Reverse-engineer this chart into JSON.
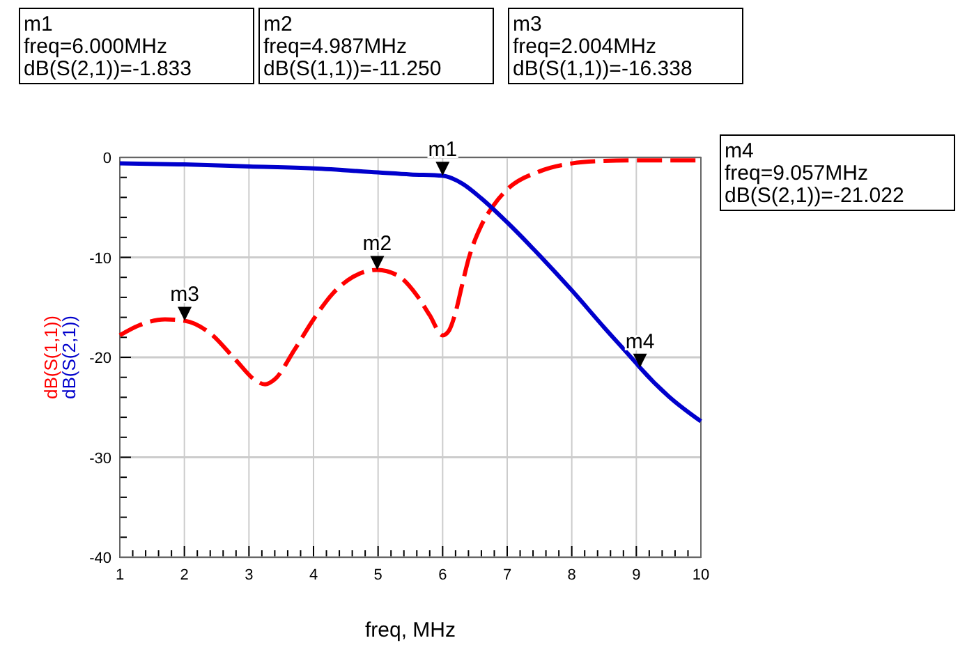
{
  "chart_data": {
    "type": "line",
    "xlabel": "freq, MHz",
    "series": [
      {
        "name": "dB(S(1,1))",
        "color": "#ff0000",
        "line_style": "dashed",
        "x": [
          1,
          1.3,
          1.7,
          2.004,
          2.4,
          2.8,
          3.1,
          3.25,
          3.4,
          3.7,
          4,
          4.3,
          4.6,
          4.987,
          5.3,
          5.6,
          5.8,
          6,
          6.1,
          6.2,
          6.3,
          6.4,
          6.6,
          6.8,
          7,
          7.5,
          8,
          8.5,
          9,
          10
        ],
        "values": [
          -17.8,
          -16.8,
          -16.2,
          -16.338,
          -17.6,
          -20.3,
          -22.3,
          -22.7,
          -22.2,
          -19.3,
          -16.2,
          -13.6,
          -12,
          -11.25,
          -11.8,
          -13.8,
          -15.8,
          -17.8,
          -17.3,
          -15.5,
          -12.8,
          -10.2,
          -6.8,
          -4.7,
          -3.2,
          -1.4,
          -0.6,
          -0.35,
          -0.3,
          -0.3
        ]
      },
      {
        "name": "dB(S(2,1))",
        "color": "#0000cc",
        "line_style": "solid",
        "x": [
          1,
          2,
          3,
          4,
          5,
          5.5,
          6,
          6.3,
          6.6,
          7,
          7.5,
          8,
          8.5,
          9,
          9.057,
          9.5,
          10
        ],
        "values": [
          -0.6,
          -0.7,
          -0.9,
          -1.1,
          -1.5,
          -1.7,
          -1.833,
          -2.6,
          -4.1,
          -6.5,
          -9.8,
          -13.3,
          -17,
          -20.6,
          -21.022,
          -23.9,
          -26.4
        ]
      }
    ],
    "xlim": [
      1,
      10
    ],
    "ylim": [
      -40,
      0
    ],
    "xticks": [
      1,
      {
        "value": 1.2,
        "label": null
      },
      {
        "value": 1.4,
        "label": null
      },
      {
        "value": 1.6,
        "label": null
      },
      {
        "value": 1.8,
        "label": null
      },
      2,
      {
        "value": 2.2,
        "label": null
      },
      {
        "value": 2.4,
        "label": null
      },
      {
        "value": 2.6,
        "label": null
      },
      {
        "value": 2.8,
        "label": null
      },
      3,
      {
        "value": 3.2,
        "label": null
      },
      {
        "value": 3.4,
        "label": null
      },
      {
        "value": 3.6,
        "label": null
      },
      {
        "value": 3.8,
        "label": null
      },
      4,
      {
        "value": 4.2,
        "label": null
      },
      {
        "value": 4.4,
        "label": null
      },
      {
        "value": 4.6,
        "label": null
      },
      {
        "value": 4.8,
        "label": null
      },
      5,
      {
        "value": 5.2,
        "label": null
      },
      {
        "value": 5.4,
        "label": null
      },
      {
        "value": 5.6,
        "label": null
      },
      {
        "value": 5.8,
        "label": null
      },
      6,
      {
        "value": 6.2,
        "label": null
      },
      {
        "value": 6.4,
        "label": null
      },
      {
        "value": 6.6,
        "label": null
      },
      {
        "value": 6.8,
        "label": null
      },
      7,
      {
        "value": 7.2,
        "label": null
      },
      {
        "value": 7.4,
        "label": null
      },
      {
        "value": 7.6,
        "label": null
      },
      {
        "value": 7.8,
        "label": null
      },
      8,
      {
        "value": 8.2,
        "label": null
      },
      {
        "value": 8.4,
        "label": null
      },
      {
        "value": 8.6,
        "label": null
      },
      {
        "value": 8.8,
        "label": null
      },
      9,
      {
        "value": 9.2,
        "label": null
      },
      {
        "value": 9.4,
        "label": null
      },
      {
        "value": 9.6,
        "label": null
      },
      {
        "value": 9.8,
        "label": null
      },
      10
    ],
    "yticks": [
      -40,
      {
        "value": -38,
        "label": null
      },
      {
        "value": -36,
        "label": null
      },
      {
        "value": -34,
        "label": null
      },
      {
        "value": -32,
        "label": null
      },
      -30,
      {
        "value": -28,
        "label": null
      },
      {
        "value": -26,
        "label": null
      },
      {
        "value": -24,
        "label": null
      },
      {
        "value": -22,
        "label": null
      },
      -20,
      {
        "value": -18,
        "label": null
      },
      {
        "value": -16,
        "label": null
      },
      {
        "value": -14,
        "label": null
      },
      {
        "value": -12,
        "label": null
      },
      -10,
      {
        "value": -8,
        "label": null
      },
      {
        "value": -6,
        "label": null
      },
      {
        "value": -4,
        "label": null
      },
      {
        "value": -2,
        "label": null
      },
      0
    ],
    "grid": true,
    "legend": "left",
    "annotations": [
      {
        "text": "m1",
        "x": 6,
        "y": -1.833
      },
      {
        "text": "m2",
        "x": 4.987,
        "y": -11.25
      },
      {
        "text": "m3",
        "x": 2.004,
        "y": -16.338
      },
      {
        "text": "m4",
        "x": 9.057,
        "y": -21.022
      },
      "m1\nfreq=6.000MHz\ndB(S(2,1))=-1.833",
      "m2\nfreq=4.987MHz\ndB(S(1,1))=-11.250",
      "m3\nfreq=2.004MHz\ndB(S(1,1))=-16.338",
      "m4\nfreq=9.057MHz\ndB(S(2,1))=-21.022"
    ]
  }
}
